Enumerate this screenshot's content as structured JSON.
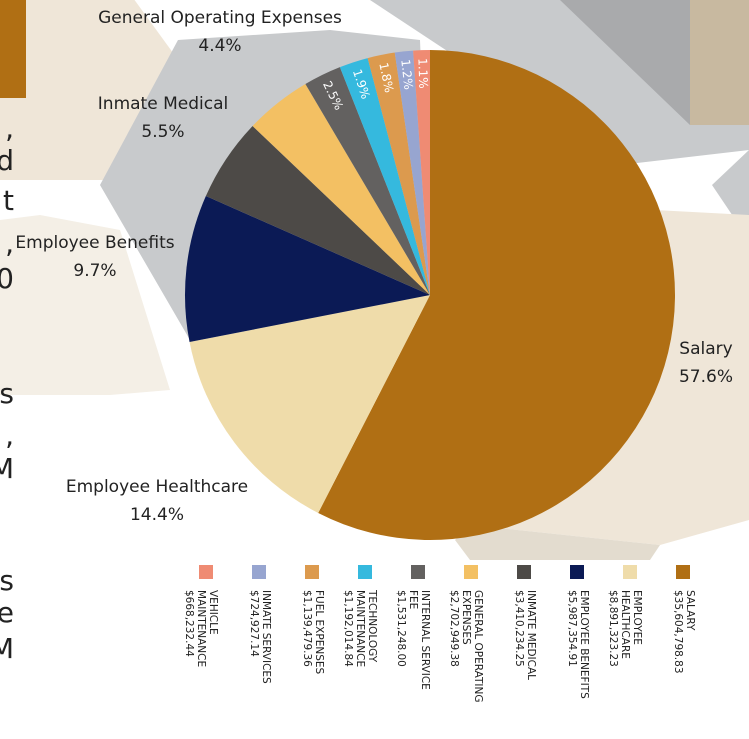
{
  "chart_data": {
    "type": "pie",
    "categories": [
      "SALARY",
      "EMPLOYEE HEALTHCARE",
      "EMPLOYEE BENEFITS",
      "INMATE MEDICAL",
      "GENERAL OPERATING EXPENSES",
      "INTERNAL SERVICE FEE",
      "TECHNOLOGY MAINTENANCE",
      "FUEL EXPENSES",
      "INMATE SERVICES",
      "VEHICLE MAINTENANCE"
    ],
    "callout_names": [
      "Salary",
      "Employee Healthcare",
      "Employee Benefits",
      "Inmate Medical",
      "General Operating Expenses",
      null,
      null,
      null,
      null,
      null
    ],
    "values": [
      57.6,
      14.4,
      9.7,
      5.5,
      4.4,
      2.5,
      1.9,
      1.8,
      1.2,
      1.1
    ],
    "value_labels": [
      "57.6%",
      "14.4%",
      "9.7%",
      "5.5%",
      "4.4%",
      "2.5%",
      "1.9%",
      "1.8%",
      "1.2%",
      "1.1%"
    ],
    "amounts": [
      35604798.83,
      8891323.23,
      5987354.91,
      3410234.25,
      2702949.38,
      1531248.0,
      1192014.84,
      1139479.36,
      724927.14,
      668232.44
    ],
    "amount_labels": [
      "$35,604,798.83",
      "$8,891,323.23",
      "$5,987,354.91",
      "$3,410,234.25",
      "$2,702,949.38",
      "$1,531,248.00",
      "$1,192,014.84",
      "$1,139,479.36",
      "$724,927.14",
      "$668,232.44"
    ],
    "colors": [
      "#b06f14",
      "#efdcaa",
      "#0b1a55",
      "#4d4a47",
      "#f3c063",
      "#636160",
      "#35b9de",
      "#dc9a4e",
      "#97a5d0",
      "#ef8b73"
    ]
  },
  "side_text": [
    ",",
    "d",
    "t",
    ",",
    "0",
    "s",
    ",",
    "M",
    "s",
    "e",
    "M"
  ]
}
